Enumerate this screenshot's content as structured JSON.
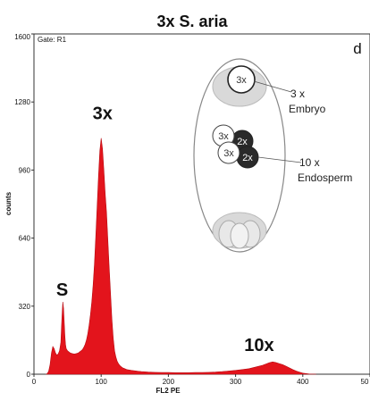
{
  "chart_data": {
    "type": "area",
    "title": "3x S. aria",
    "panel_label": "d",
    "gate_label": "Gate: R1",
    "xlabel": "FL2 PE",
    "ylabel": "counts",
    "xlim": [
      0,
      500
    ],
    "ylim": [
      0,
      1600
    ],
    "xticks": [
      "0",
      "100",
      "200",
      "300",
      "400",
      "50"
    ],
    "yticks": [
      "0",
      "320",
      "640",
      "960",
      "1280",
      "1600"
    ],
    "grid": false,
    "series": [
      {
        "color": "#e3141c",
        "x": [
          18,
          20,
          22,
          24,
          26,
          28,
          30,
          32,
          34,
          36,
          38,
          40,
          41,
          42,
          43,
          44,
          45,
          46,
          47,
          48,
          50,
          52,
          54,
          56,
          58,
          60,
          62,
          64,
          66,
          68,
          70,
          72,
          74,
          76,
          78,
          80,
          82,
          84,
          86,
          88,
          90,
          92,
          94,
          96,
          98,
          100,
          102,
          104,
          106,
          108,
          110,
          112,
          114,
          116,
          118,
          120,
          122,
          124,
          126,
          128,
          130,
          132,
          135,
          138,
          141,
          145,
          150,
          155,
          160,
          170,
          180,
          190,
          200,
          210,
          220,
          230,
          240,
          250,
          260,
          270,
          280,
          290,
          300,
          310,
          320,
          330,
          340,
          345,
          350,
          355,
          360,
          365,
          370,
          375,
          380,
          385,
          390,
          395,
          400,
          410,
          420
        ],
        "y": [
          0,
          3,
          15,
          45,
          100,
          130,
          120,
          100,
          90,
          95,
          110,
          150,
          220,
          290,
          340,
          310,
          250,
          180,
          140,
          120,
          110,
          105,
          100,
          98,
          96,
          95,
          96,
          98,
          100,
          105,
          110,
          115,
          125,
          140,
          160,
          190,
          230,
          280,
          340,
          420,
          520,
          650,
          790,
          930,
          1050,
          1110,
          1060,
          960,
          850,
          760,
          630,
          500,
          380,
          260,
          170,
          110,
          80,
          60,
          48,
          40,
          35,
          30,
          26,
          22,
          20,
          18,
          16,
          14,
          12,
          10,
          9,
          8,
          8,
          7,
          7,
          7,
          8,
          8,
          9,
          10,
          12,
          15,
          18,
          22,
          26,
          34,
          42,
          48,
          54,
          58,
          55,
          50,
          45,
          38,
          30,
          22,
          15,
          10,
          5,
          1,
          0
        ]
      }
    ],
    "peak_labels": [
      {
        "text": "S",
        "x": 42,
        "y": 370
      },
      {
        "text": "3x",
        "x": 102,
        "y": 1200
      },
      {
        "text": "10x",
        "x": 335,
        "y": 110
      }
    ]
  },
  "diagram": {
    "cells_top": [
      "3x"
    ],
    "cells_mid_light": [
      "3x",
      "3x"
    ],
    "cells_mid_dark": [
      "2x",
      "2x"
    ],
    "embryo_label": [
      "3 x",
      "Embryo"
    ],
    "endosperm_label": [
      "10 x",
      "Endosperm"
    ]
  }
}
